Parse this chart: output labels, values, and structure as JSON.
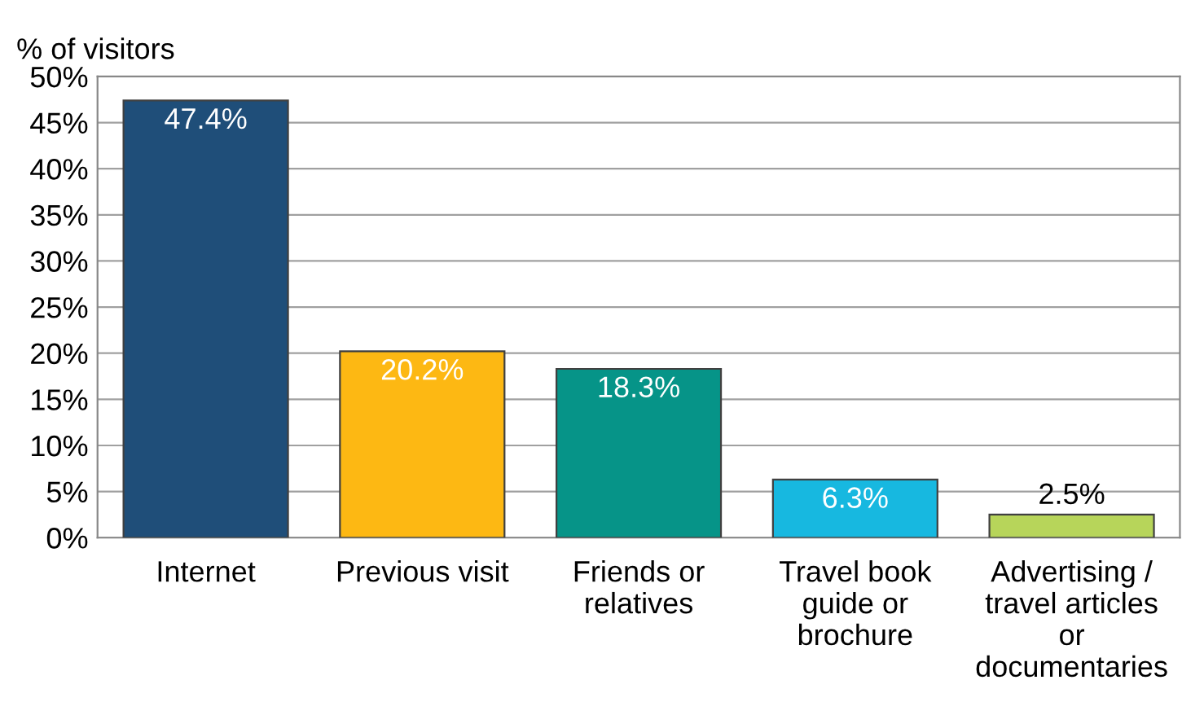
{
  "chart_data": {
    "type": "bar",
    "ylabel": "% of visitors",
    "categories": [
      "Internet",
      "Previous visit",
      "Friends or\nrelatives",
      "Travel book\nguide or\nbrochure",
      "Advertising /\ntravel articles\nor\ndocumentaries"
    ],
    "values": [
      47.4,
      20.2,
      18.3,
      6.3,
      2.5
    ],
    "colors": [
      "#1f4e79",
      "#fdb813",
      "#069488",
      "#17b8e0",
      "#b7d55a"
    ],
    "value_labels": [
      "47.4%",
      "20.2%",
      "18.3%",
      "6.3%",
      "2.5%"
    ],
    "ylim": [
      0,
      50
    ],
    "yticks": [
      {
        "value": 0,
        "label": "0%"
      },
      {
        "value": 5,
        "label": "5%"
      },
      {
        "value": 10,
        "label": "10%"
      },
      {
        "value": 15,
        "label": "15%"
      },
      {
        "value": 20,
        "label": "20%"
      },
      {
        "value": 25,
        "label": "25%"
      },
      {
        "value": 30,
        "label": "30%"
      },
      {
        "value": 35,
        "label": "35%"
      },
      {
        "value": 40,
        "label": "40%"
      },
      {
        "value": 45,
        "label": "45%"
      },
      {
        "value": 50,
        "label": "50%"
      }
    ],
    "grid": "y",
    "legend": false
  }
}
